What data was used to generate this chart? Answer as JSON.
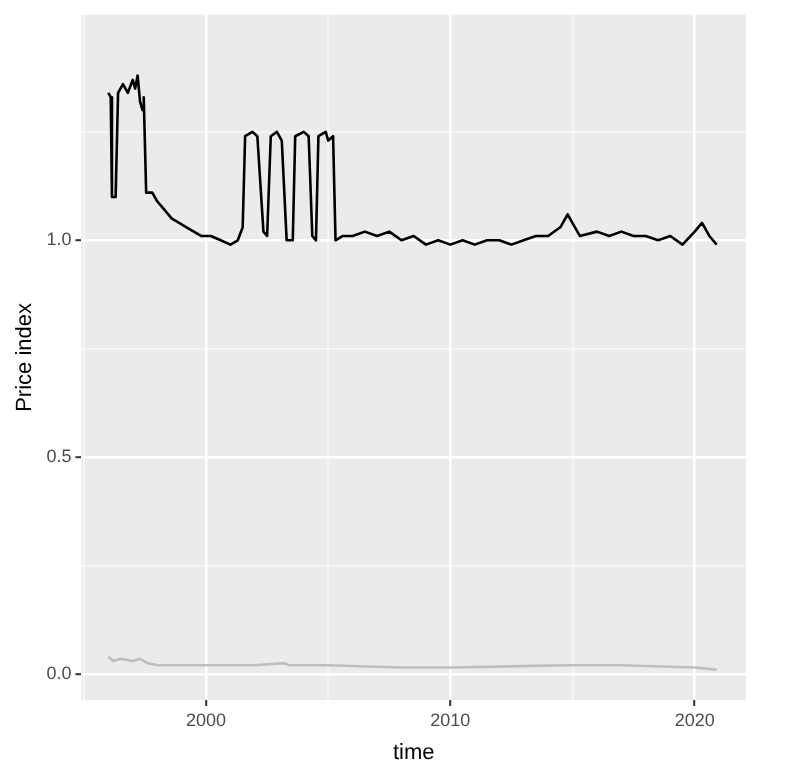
{
  "chart_data": {
    "type": "line",
    "xlabel": "time",
    "ylabel": "Price index",
    "xlim": [
      1994.9,
      2022.1
    ],
    "ylim": [
      -0.06,
      1.52
    ],
    "xticks": [
      {
        "value": 1995,
        "label": null
      },
      2000,
      {
        "value": 2005,
        "label": null
      },
      2010,
      {
        "value": 2015,
        "label": null
      },
      2020
    ],
    "yticks": [
      {
        "value": 0,
        "label": "0.0"
      },
      {
        "value": 0.25,
        "label": null
      },
      {
        "value": 0.5,
        "label": "0.5"
      },
      {
        "value": 0.75,
        "label": null
      },
      {
        "value": 1,
        "label": "1.0"
      },
      {
        "value": 1.25,
        "label": null
      }
    ],
    "grid": true,
    "legend": false,
    "marker": "none",
    "line_style": "solid",
    "series": [
      {
        "color": "#000000",
        "x": [
          1996.0,
          1996.1,
          1996.15,
          1996.3,
          1996.4,
          1996.6,
          1996.8,
          1997.0,
          1997.1,
          1997.2,
          1997.3,
          1997.4,
          1997.45,
          1997.55,
          1997.8,
          1998.0,
          1998.3,
          1998.6,
          1998.9,
          1999.2,
          1999.5,
          1999.8,
          2000.2,
          2000.6,
          2001.0,
          2001.3,
          2001.5,
          2001.6,
          2001.9,
          2002.1,
          2002.35,
          2002.5,
          2002.65,
          2002.9,
          2003.1,
          2003.3,
          2003.55,
          2003.65,
          2004.0,
          2004.2,
          2004.35,
          2004.5,
          2004.6,
          2004.9,
          2005.0,
          2005.2,
          2005.3,
          2005.6,
          2006,
          2006.5,
          2007,
          2007.5,
          2008,
          2008.5,
          2009,
          2009.5,
          2010,
          2010.5,
          2011,
          2011.5,
          2012,
          2012.5,
          2013,
          2013.5,
          2014,
          2014.5,
          2014.8,
          2015.1,
          2015.3,
          2016,
          2016.5,
          2017,
          2017.5,
          2018,
          2018.5,
          2019,
          2019.5,
          2020,
          2020.3,
          2020.6,
          2020.9
        ],
        "values": [
          1.34,
          1.33,
          1.1,
          1.1,
          1.34,
          1.36,
          1.34,
          1.37,
          1.35,
          1.38,
          1.32,
          1.3,
          1.33,
          1.11,
          1.11,
          1.09,
          1.07,
          1.05,
          1.04,
          1.03,
          1.02,
          1.01,
          1.01,
          1.0,
          0.99,
          1.0,
          1.03,
          1.24,
          1.25,
          1.24,
          1.02,
          1.01,
          1.24,
          1.25,
          1.23,
          1.0,
          1.0,
          1.24,
          1.25,
          1.24,
          1.01,
          1.0,
          1.24,
          1.25,
          1.23,
          1.24,
          1.0,
          1.01,
          1.01,
          1.02,
          1.01,
          1.02,
          1.0,
          1.01,
          0.99,
          1.0,
          0.99,
          1.0,
          0.99,
          1.0,
          1.0,
          0.99,
          1.0,
          1.01,
          1.01,
          1.03,
          1.06,
          1.03,
          1.01,
          1.02,
          1.01,
          1.02,
          1.01,
          1.01,
          1.0,
          1.01,
          0.99,
          1.02,
          1.04,
          1.01,
          0.99
        ]
      },
      {
        "color": "#bebebe",
        "x": [
          1996.0,
          1996.2,
          1996.5,
          1997.0,
          1997.3,
          1997.6,
          1998.0,
          2000.0,
          2002.0,
          2003.2,
          2003.4,
          2005.0,
          2008.0,
          2010.0,
          2014.8,
          2017.0,
          2020.0,
          2020.9
        ],
        "values": [
          0.04,
          0.03,
          0.035,
          0.03,
          0.035,
          0.025,
          0.02,
          0.02,
          0.02,
          0.025,
          0.02,
          0.02,
          0.015,
          0.015,
          0.02,
          0.02,
          0.015,
          0.01
        ]
      }
    ]
  }
}
